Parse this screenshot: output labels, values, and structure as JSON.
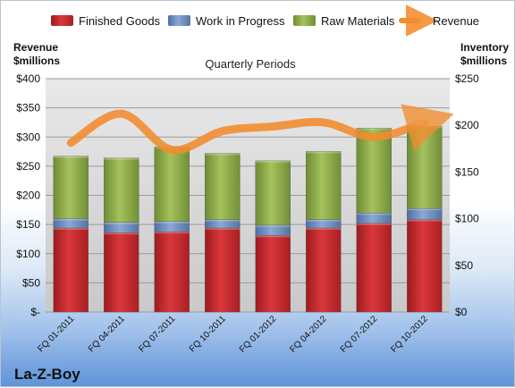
{
  "chart_data": {
    "type": "bar",
    "stacked": true,
    "title": "Quarterly Periods",
    "company": "La-Z-Boy",
    "left_axis": {
      "label_line1": "Revenue",
      "label_line2": "$millions",
      "min": 0,
      "max": 400,
      "step": 50,
      "ticks": [
        "$-",
        "$50",
        "$100",
        "$150",
        "$200",
        "$250",
        "$300",
        "$350",
        "$400"
      ]
    },
    "right_axis": {
      "label_line1": "Inventory",
      "label_line2": "$millions",
      "min": 0,
      "max": 250,
      "step": 50,
      "ticks": [
        "$0",
        "$50",
        "$100",
        "$150",
        "$200",
        "$250"
      ]
    },
    "categories": [
      "FQ 01-2011",
      "FQ 04-2011",
      "FQ 07-2011",
      "FQ 10-2011",
      "FQ 01-2012",
      "FQ 04-2012",
      "FQ 07-2012",
      "FQ 10-2012"
    ],
    "series": [
      {
        "name": "Finished Goods",
        "color": "#c0282d",
        "axis": "right",
        "values": [
          90,
          85,
          86,
          90,
          82,
          90,
          95,
          99
        ]
      },
      {
        "name": "Work in Progress",
        "color": "#6d8fc4",
        "axis": "right",
        "values": [
          10,
          11,
          11,
          9,
          11,
          9,
          11,
          12
        ]
      },
      {
        "name": "Raw Materials",
        "color": "#8fb04a",
        "axis": "right",
        "values": [
          67,
          69,
          80,
          71,
          69,
          73,
          91,
          88
        ]
      },
      {
        "name": "Revenue",
        "type": "line",
        "color": "#f28c2e",
        "axis": "left",
        "values": [
          290,
          340,
          278,
          310,
          318,
          325,
          300,
          325
        ]
      }
    ],
    "grid": true,
    "legend": "top"
  }
}
